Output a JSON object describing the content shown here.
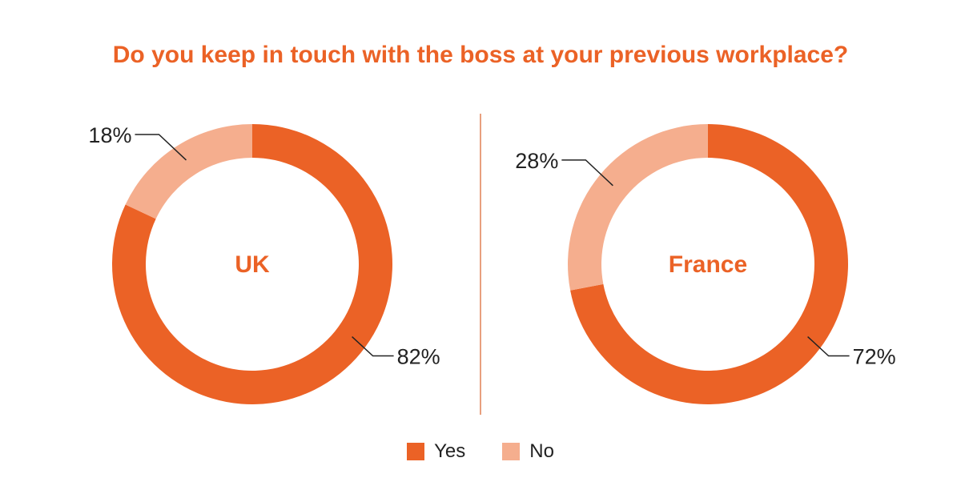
{
  "colors": {
    "yes": "#eb6226",
    "no": "#f5ae8e",
    "divider": "#e8a07e",
    "title": "#eb6226"
  },
  "chart_data": {
    "type": "pie",
    "title": "Do you keep in touch with the boss at your previous workplace?",
    "legend_position": "bottom",
    "legend": [
      {
        "name": "Yes",
        "color": "#eb6226"
      },
      {
        "name": "No",
        "color": "#f5ae8e"
      }
    ],
    "charts": [
      {
        "label": "UK",
        "slices": [
          {
            "name": "Yes",
            "value": 82,
            "label": "82%"
          },
          {
            "name": "No",
            "value": 18,
            "label": "18%"
          }
        ]
      },
      {
        "label": "France",
        "slices": [
          {
            "name": "Yes",
            "value": 72,
            "label": "72%"
          },
          {
            "name": "No",
            "value": 28,
            "label": "28%"
          }
        ]
      }
    ]
  }
}
